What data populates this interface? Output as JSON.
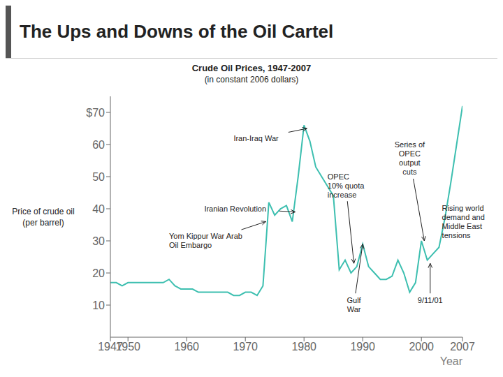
{
  "chart_data": {
    "type": "line",
    "title": "The Ups and Downs of the Oil Cartel",
    "subtitle": [
      "Crude Oil Prices, 1947-2007",
      "(in constant 2006 dollars)"
    ],
    "xlabel": "Year",
    "ylabel": "Price of crude oil\n(per barrel)",
    "x": [
      1947,
      1948,
      1949,
      1950,
      1951,
      1952,
      1953,
      1954,
      1955,
      1956,
      1957,
      1958,
      1959,
      1960,
      1961,
      1962,
      1963,
      1964,
      1965,
      1966,
      1967,
      1968,
      1969,
      1970,
      1971,
      1972,
      1973,
      1974,
      1975,
      1976,
      1977,
      1978,
      1979,
      1980,
      1981,
      1982,
      1983,
      1984,
      1985,
      1986,
      1987,
      1988,
      1989,
      1990,
      1991,
      1992,
      1993,
      1994,
      1995,
      1996,
      1997,
      1998,
      1999,
      2000,
      2001,
      2002,
      2003,
      2004,
      2005,
      2006,
      2007
    ],
    "values": [
      17,
      17,
      16,
      17,
      17,
      17,
      17,
      17,
      17,
      17,
      18,
      16,
      15,
      15,
      15,
      14,
      14,
      14,
      14,
      14,
      14,
      13,
      13,
      14,
      14,
      13,
      16,
      42,
      38,
      40,
      41,
      36,
      50,
      66,
      61,
      53,
      50,
      47,
      44,
      21,
      24,
      20,
      22,
      29,
      22,
      20,
      18,
      18,
      19,
      24,
      20,
      14,
      17,
      30,
      24,
      26,
      28,
      37,
      48,
      60,
      72
    ],
    "color": "#3DBFB0",
    "xlim": [
      1947,
      2007
    ],
    "ylim": [
      0,
      75
    ],
    "xticks": [
      1947,
      1950,
      1960,
      1970,
      1980,
      1990,
      2000,
      2007
    ],
    "yticks": [
      10,
      20,
      30,
      40,
      50,
      60,
      {
        "value": 70,
        "label": "$70"
      }
    ],
    "grid": false,
    "annotations": [
      {
        "text": "Iran-Iraq War",
        "x": 1980.5,
        "y": 65,
        "text_x": 1968,
        "text_y": 62
      },
      {
        "text": "Iranian Revolution",
        "x": 1978.5,
        "y": 39,
        "text_x": 1963,
        "text_y": 40
      },
      {
        "text": "Yom Kippur War Arab\nOil Embargo",
        "x": 1973.5,
        "y": 36,
        "text_x": 1957,
        "text_y": 30
      },
      {
        "text": "OPEC\n10% quota\nincrease",
        "x": 1988.5,
        "y": 23,
        "text_x": 1984,
        "text_y": 43
      },
      {
        "text": "Series of\nOPEC\noutput\ncuts",
        "x": 2000.5,
        "y": 30,
        "text_x": 1998,
        "text_y": 50
      },
      {
        "text": "Gulf\nWar",
        "x": 1990,
        "y": 29,
        "text_x": 1988.5,
        "text_y": 13
      },
      {
        "text": "9/11/01",
        "x": 2001.5,
        "y": 23,
        "text_x": 2001.5,
        "text_y": 13
      },
      {
        "text": "Rising world\ndemand and\nMiddle East\ntensions",
        "x": 2003.5,
        "y": 36
      }
    ]
  }
}
